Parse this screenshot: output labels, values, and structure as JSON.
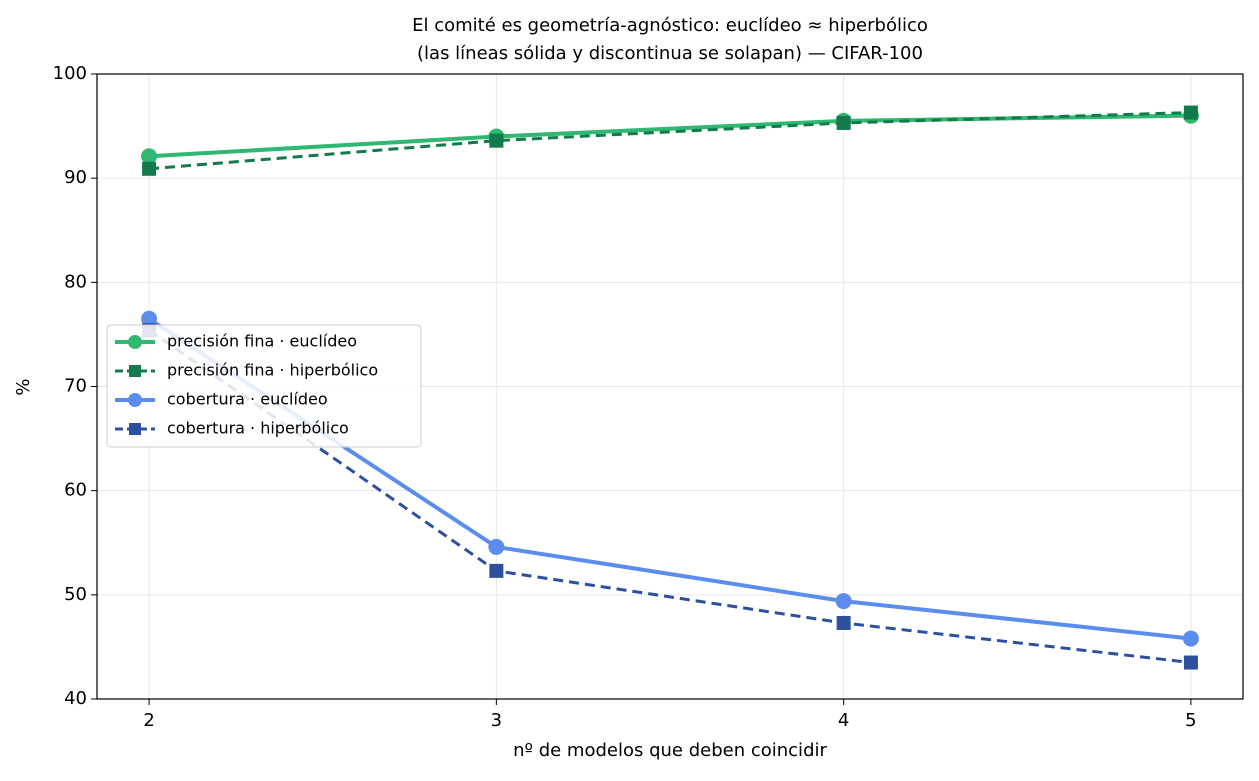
{
  "chart_data": {
    "type": "line",
    "title": "El comité es geometría-agnóstico: euclídeo ≈ hiperbólico",
    "subtitle": "(las líneas sólida y discontinua se solapan) — CIFAR-100",
    "x_label": "nº de modelos que deben coincidir",
    "y_label": "%",
    "x": [
      2,
      3,
      4,
      5
    ],
    "xlim": [
      1.85,
      5.15
    ],
    "xticks": [
      2,
      3,
      4,
      5
    ],
    "ylim": [
      40,
      100
    ],
    "yticks": [
      40,
      50,
      60,
      70,
      80,
      90,
      100
    ],
    "grid": true,
    "legend": "center left",
    "series": [
      {
        "name": "precisión fina · euclídeo",
        "color": "#2eb872",
        "marker": "circle",
        "dash": "solid",
        "values": [
          92.1,
          94.0,
          95.5,
          96.0
        ]
      },
      {
        "name": "precisión fina · hiperbólico",
        "color": "#137a4b",
        "marker": "square",
        "dash": "dashed",
        "values": [
          90.9,
          93.6,
          95.3,
          96.3
        ]
      },
      {
        "name": "cobertura · euclídeo",
        "color": "#5b8def",
        "marker": "circle",
        "dash": "solid",
        "values": [
          76.5,
          54.6,
          49.4,
          45.8
        ]
      },
      {
        "name": "cobertura · hiperbólico",
        "color": "#2c509e",
        "marker": "square",
        "dash": "dashed",
        "values": [
          75.4,
          52.3,
          47.3,
          43.5
        ]
      }
    ]
  }
}
